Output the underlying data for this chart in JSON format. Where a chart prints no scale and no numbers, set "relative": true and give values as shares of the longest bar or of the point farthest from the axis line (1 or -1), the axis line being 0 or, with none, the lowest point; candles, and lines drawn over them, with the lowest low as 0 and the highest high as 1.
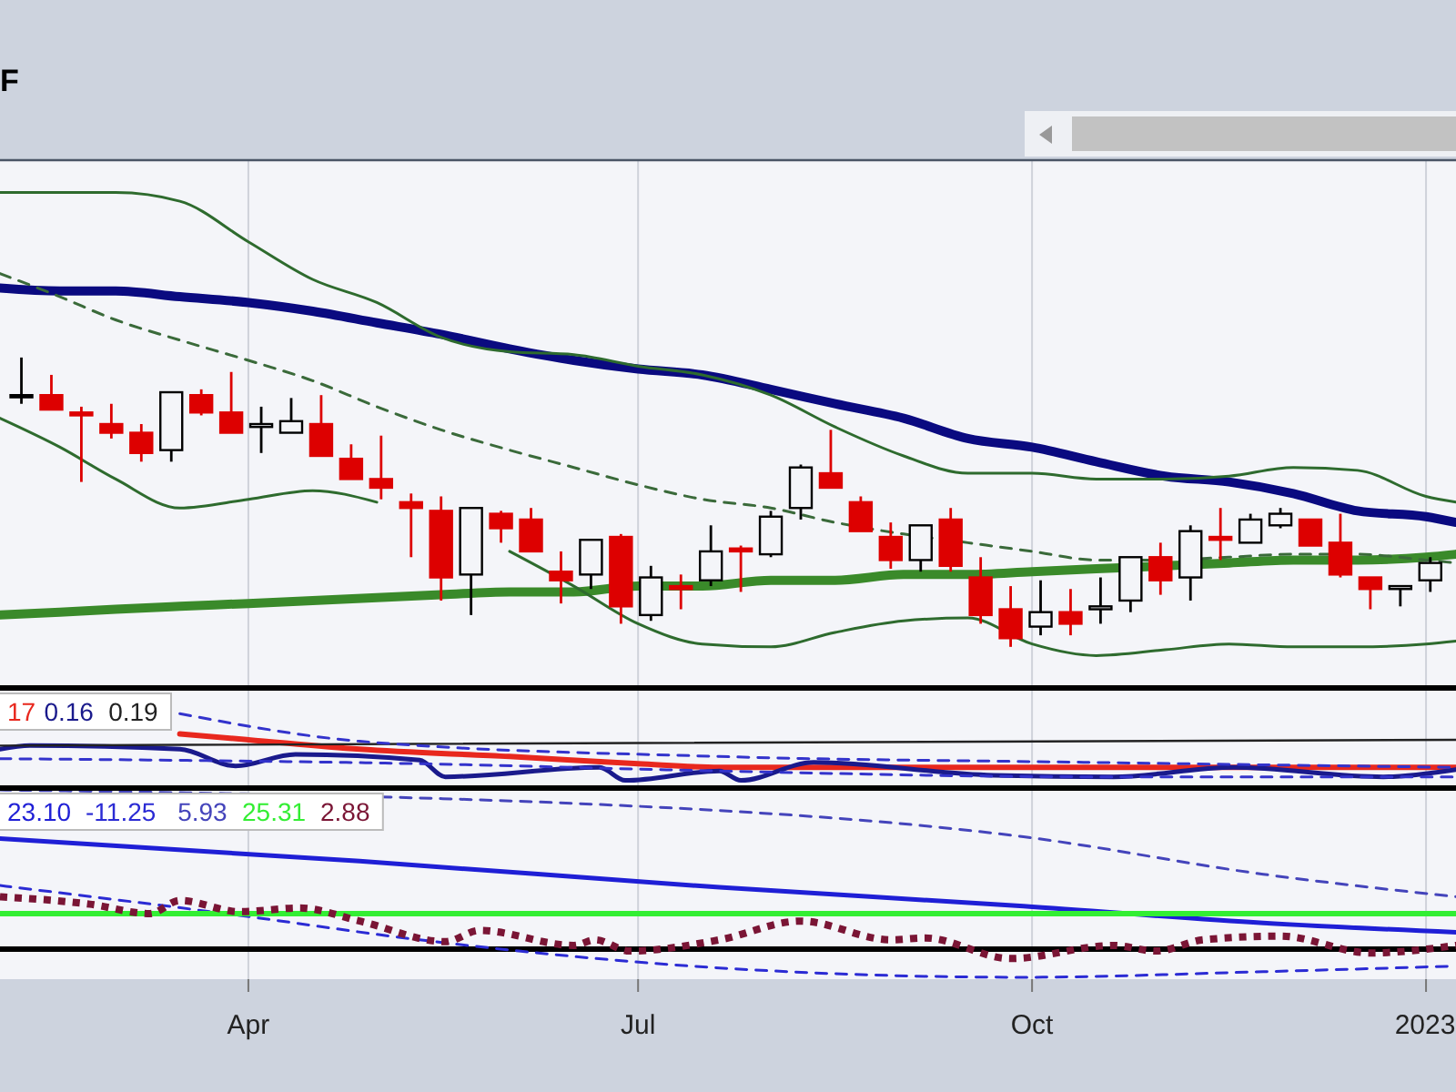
{
  "chart_data": [
    {
      "type": "candlestick",
      "title": "F",
      "relative": true,
      "grid": "x",
      "tick_labels": false,
      "xlim": [
        "2022-02-02",
        "2023-01-08"
      ],
      "xticks": [
        {
          "value": "2022-04-01",
          "label": null
        },
        {
          "value": "2022-07-01",
          "label": null
        },
        {
          "value": "2022-10-01",
          "label": null
        },
        {
          "value": "2023-01-01",
          "label": null
        }
      ],
      "x": [
        "2022-02-07",
        "2022-02-14",
        "2022-02-21",
        "2022-02-28",
        "2022-03-07",
        "2022-03-14",
        "2022-03-21",
        "2022-03-28",
        "2022-04-04",
        "2022-04-11",
        "2022-04-18",
        "2022-04-25",
        "2022-05-02",
        "2022-05-09",
        "2022-05-16",
        "2022-05-23",
        "2022-05-30",
        "2022-06-06",
        "2022-06-13",
        "2022-06-20",
        "2022-06-27",
        "2022-07-04",
        "2022-07-11",
        "2022-07-18",
        "2022-07-25",
        "2022-08-01",
        "2022-08-08",
        "2022-08-15",
        "2022-08-22",
        "2022-08-29",
        "2022-09-05",
        "2022-09-12",
        "2022-09-19",
        "2022-09-26",
        "2022-10-03",
        "2022-10-10",
        "2022-10-17",
        "2022-10-24",
        "2022-10-31",
        "2022-11-07",
        "2022-11-14",
        "2022-11-21",
        "2022-11-28",
        "2022-12-05",
        "2022-12-12",
        "2022-12-19",
        "2022-12-26",
        "2023-01-02"
      ],
      "ohlc": [
        [
          0.87,
          1,
          0.84,
          0.87
        ],
        [
          0.87,
          0.94,
          0.82,
          0.82
        ],
        [
          0.81,
          0.83,
          0.57,
          0.8
        ],
        [
          0.77,
          0.84,
          0.72,
          0.74
        ],
        [
          0.74,
          0.77,
          0.64,
          0.67
        ],
        [
          0.68,
          0.88,
          0.64,
          0.88
        ],
        [
          0.87,
          0.89,
          0.8,
          0.81
        ],
        [
          0.81,
          0.95,
          0.74,
          0.74
        ],
        [
          0.76,
          0.83,
          0.67,
          0.77
        ],
        [
          0.74,
          0.86,
          0.74,
          0.78
        ],
        [
          0.77,
          0.87,
          0.66,
          0.66
        ],
        [
          0.65,
          0.7,
          0.58,
          0.58
        ],
        [
          0.58,
          0.73,
          0.51,
          0.55
        ],
        [
          0.5,
          0.53,
          0.31,
          0.48
        ],
        [
          0.47,
          0.52,
          0.16,
          0.24
        ],
        [
          0.25,
          0.48,
          0.11,
          0.48
        ],
        [
          0.46,
          0.47,
          0.36,
          0.41
        ],
        [
          0.44,
          0.48,
          0.33,
          0.33
        ],
        [
          0.26,
          0.33,
          0.15,
          0.23
        ],
        [
          0.25,
          0.37,
          0.2,
          0.37
        ],
        [
          0.38,
          0.39,
          0.08,
          0.14
        ],
        [
          0.11,
          0.28,
          0.09,
          0.24
        ],
        [
          0.21,
          0.25,
          0.13,
          0.2
        ],
        [
          0.23,
          0.42,
          0.21,
          0.33
        ],
        [
          0.34,
          0.35,
          0.19,
          0.33
        ],
        [
          0.32,
          0.47,
          0.31,
          0.45
        ],
        [
          0.48,
          0.63,
          0.44,
          0.62
        ],
        [
          0.6,
          0.75,
          0.55,
          0.55
        ],
        [
          0.5,
          0.52,
          0.4,
          0.4
        ],
        [
          0.38,
          0.43,
          0.27,
          0.3
        ],
        [
          0.3,
          0.42,
          0.26,
          0.42
        ],
        [
          0.44,
          0.48,
          0.26,
          0.28
        ],
        [
          0.24,
          0.31,
          0.08,
          0.11
        ],
        [
          0.13,
          0.21,
          0,
          0.03
        ],
        [
          0.07,
          0.23,
          0.04,
          0.12
        ],
        [
          0.12,
          0.2,
          0.04,
          0.08
        ],
        [
          0.13,
          0.24,
          0.08,
          0.14
        ],
        [
          0.16,
          0.31,
          0.12,
          0.31
        ],
        [
          0.31,
          0.36,
          0.18,
          0.23
        ],
        [
          0.24,
          0.42,
          0.16,
          0.4
        ],
        [
          0.38,
          0.48,
          0.3,
          0.37
        ],
        [
          0.36,
          0.46,
          0.36,
          0.44
        ],
        [
          0.42,
          0.48,
          0.41,
          0.46
        ],
        [
          0.44,
          0.44,
          0.35,
          0.35
        ],
        [
          0.36,
          0.46,
          0.24,
          0.25
        ],
        [
          0.24,
          0.24,
          0.13,
          0.2
        ],
        [
          0.2,
          0.21,
          0.14,
          0.21
        ],
        [
          0.23,
          0.31,
          0.19,
          0.29
        ]
      ],
      "colors": [
        "#000000",
        "#dd0000",
        "#dd0000",
        "#dd0000",
        "#dd0000",
        "#000000",
        "#dd0000",
        "#dd0000",
        "#000000",
        "#000000",
        "#dd0000",
        "#dd0000",
        "#dd0000",
        "#dd0000",
        "#dd0000",
        "#000000",
        "#dd0000",
        "#dd0000",
        "#dd0000",
        "#000000",
        "#dd0000",
        "#000000",
        "#dd0000",
        "#000000",
        "#dd0000",
        "#000000",
        "#000000",
        "#dd0000",
        "#dd0000",
        "#dd0000",
        "#000000",
        "#dd0000",
        "#dd0000",
        "#dd0000",
        "#000000",
        "#dd0000",
        "#000000",
        "#000000",
        "#dd0000",
        "#000000",
        "#dd0000",
        "#000000",
        "#000000",
        "#dd0000",
        "#dd0000",
        "#dd0000",
        "#000000",
        "#000000"
      ],
      "series": [
        {
          "type": "line",
          "color": "#0a0a80",
          "x": [
            "2022-02-02",
            "2022-02-16",
            "2022-03-01",
            "2022-03-16",
            "2022-04-01",
            "2022-04-16",
            "2022-05-01",
            "2022-05-16",
            "2022-06-01",
            "2022-06-16",
            "2022-07-01",
            "2022-07-16",
            "2022-08-01",
            "2022-08-16",
            "2022-09-01",
            "2022-09-16",
            "2022-10-01",
            "2022-10-16",
            "2022-11-01",
            "2022-11-16",
            "2022-12-01",
            "2022-12-16",
            "2023-01-01",
            "2023-01-08"
          ],
          "values": [
            1.24,
            1.23,
            1.23,
            1.21,
            1.19,
            1.16,
            1.12,
            1.08,
            1.03,
            0.99,
            0.96,
            0.94,
            0.89,
            0.84,
            0.79,
            0.72,
            0.69,
            0.64,
            0.59,
            0.57,
            0.53,
            0.47,
            0.45,
            0.43
          ]
        },
        {
          "type": "line",
          "color": "#3a8a2a",
          "x": [
            "2022-02-02",
            "2022-02-16",
            "2022-03-01",
            "2022-03-16",
            "2022-04-01",
            "2022-04-16",
            "2022-05-01",
            "2022-05-16",
            "2022-06-01",
            "2022-06-16",
            "2022-07-01",
            "2022-07-16",
            "2022-08-01",
            "2022-08-16",
            "2022-09-01",
            "2022-09-16",
            "2022-10-01",
            "2022-10-16",
            "2022-11-01",
            "2022-11-16",
            "2022-12-01",
            "2022-12-16",
            "2023-01-01",
            "2023-01-08"
          ],
          "values": [
            0.11,
            0.12,
            0.13,
            0.14,
            0.15,
            0.16,
            0.17,
            0.18,
            0.19,
            0.19,
            0.21,
            0.21,
            0.23,
            0.23,
            0.25,
            0.25,
            0.26,
            0.27,
            0.28,
            0.29,
            0.3,
            0.3,
            0.31,
            0.32
          ]
        },
        {
          "type": "line",
          "color": "#2e6b2e",
          "x": [
            "2022-02-02",
            "2022-02-16",
            "2022-03-01",
            "2022-03-16",
            "2022-04-01",
            "2022-04-16",
            "2022-05-01",
            "2022-05-16",
            "2022-06-01",
            "2022-06-16",
            "2022-07-01",
            "2022-07-16",
            "2022-08-01",
            "2022-08-16",
            "2022-09-01",
            "2022-09-16",
            "2022-10-01",
            "2022-10-16",
            "2022-11-01",
            "2022-11-16",
            "2022-12-01",
            "2022-12-16",
            "2023-01-01",
            "2023-01-08"
          ],
          "values": [
            1.57,
            1.57,
            1.57,
            1.54,
            1.4,
            1.27,
            1.19,
            1.07,
            1.02,
            1.01,
            0.97,
            0.94,
            0.87,
            0.76,
            0.66,
            0.6,
            0.6,
            0.58,
            0.58,
            0.59,
            0.62,
            0.61,
            0.52,
            0.5
          ]
        },
        {
          "type": "line",
          "color": "#2e6b2e",
          "x": [
            "2022-02-02",
            "2022-02-16",
            "2022-03-01",
            "2022-03-16",
            "2022-04-01",
            "2022-04-16",
            "2022-05-01",
            "2022-05-16",
            "2022-06-01",
            "2022-06-16",
            "2022-07-01",
            "2022-07-16",
            "2022-08-01",
            "2022-08-16",
            "2022-09-01",
            "2022-09-16",
            "2022-10-01",
            "2022-10-16",
            "2022-11-01",
            "2022-11-16",
            "2022-12-01",
            "2022-12-16",
            "2023-01-01",
            "2023-01-08"
          ],
          "values": [
            0.79,
            0.69,
            0.58,
            0.48,
            0.51,
            0.54,
            0.5,
            null,
            0.33,
            0.21,
            0.08,
            0.01,
            0,
            0.05,
            0.09,
            0.1,
            0.01,
            -0.03,
            -0.01,
            0.01,
            0,
            0,
            0.01,
            0.02
          ]
        },
        {
          "type": "line",
          "color": "#3a6a3a",
          "line_style": "dashed",
          "x": [
            "2022-02-02",
            "2022-02-16",
            "2022-03-01",
            "2022-03-16",
            "2022-04-01",
            "2022-04-16",
            "2022-05-01",
            "2022-05-16",
            "2022-06-01",
            "2022-06-16",
            "2022-07-01",
            "2022-07-16",
            "2022-08-01",
            "2022-08-16",
            "2022-09-01",
            "2022-09-16",
            "2022-10-01",
            "2022-10-16",
            "2022-11-01",
            "2022-11-16",
            "2022-12-01",
            "2022-12-16",
            "2023-01-01",
            "2023-01-08"
          ],
          "values": [
            1.29,
            1.21,
            1.13,
            1.06,
            0.99,
            0.92,
            0.83,
            0.75,
            0.68,
            0.62,
            0.56,
            0.51,
            0.48,
            0.43,
            0.39,
            0.36,
            0.33,
            0.3,
            0.3,
            0.31,
            0.32,
            0.32,
            0.3,
            0.29
          ]
        }
      ]
    },
    {
      "type": "line",
      "relative": true,
      "grid": "x",
      "tick_labels": false,
      "legend": "top left",
      "xlim": [
        "2022-02-02",
        "2023-01-08"
      ],
      "xticks": [
        {
          "value": "2022-04-01",
          "label": null
        },
        {
          "value": "2022-07-01",
          "label": null
        },
        {
          "value": "2022-10-01",
          "label": null
        },
        {
          "value": "2023-01-01",
          "label": null
        }
      ],
      "series": [
        {
          "name": "17",
          "color": "#e8281e",
          "x": [
            "2022-03-16",
            "2022-04-01",
            "2022-04-27",
            "2022-06-01",
            "2022-07-01",
            "2022-07-20",
            "2022-09-01",
            "2022-11-01",
            "2023-01-08"
          ],
          "values": [
            0.72,
            0.64,
            0.51,
            0.41,
            0.31,
            0.26,
            0.26,
            0.26,
            0.26
          ]
        },
        {
          "name": "0.16",
          "color": "#1a1a8c",
          "x": [
            "2022-02-02",
            "2022-02-09",
            "2022-03-16",
            "2022-03-29",
            "2022-04-12",
            "2022-05-11",
            "2022-05-17",
            "2022-06-22",
            "2022-06-28",
            "2022-07-20",
            "2022-07-25",
            "2022-08-11",
            "2022-09-22",
            "2022-10-20",
            "2022-11-17",
            "2022-12-22",
            "2023-01-08"
          ],
          "values": [
            0.51,
            0.56,
            0.51,
            0.28,
            0.44,
            0.36,
            0.13,
            0.26,
            0.08,
            0.21,
            0.08,
            0.33,
            0.15,
            0.13,
            0.26,
            0.13,
            0.23
          ]
        },
        {
          "name": "0.19",
          "color": "#222222",
          "x": [
            "2022-02-02",
            "2023-01-08"
          ],
          "values": [
            0.56,
            0.64
          ]
        },
        {
          "color": "#3333cc",
          "line_style": "dashed",
          "x": [
            "2022-03-16",
            "2022-04-27",
            "2022-07-20",
            "2022-10-13",
            "2023-01-08"
          ],
          "values": [
            1,
            0.62,
            0.41,
            0.33,
            0.26
          ]
        },
        {
          "color": "#3333cc",
          "line_style": "dashed",
          "x": [
            "2022-02-02",
            "2022-05-11",
            "2022-07-20",
            "2022-10-13",
            "2023-01-08"
          ],
          "values": [
            0.38,
            0.31,
            0.21,
            0.13,
            0.13
          ]
        }
      ]
    },
    {
      "type": "line",
      "relative": true,
      "grid": "x",
      "tick_labels": "x",
      "legend": "top left",
      "xlim": [
        "2022-02-02",
        "2023-01-08"
      ],
      "xticks": [
        {
          "value": "2022-04-01",
          "label": "Apr"
        },
        {
          "value": "2022-07-01",
          "label": "Jul"
        },
        {
          "value": "2022-10-01",
          "label": "Oct"
        },
        {
          "value": "2023-01-01",
          "label": "2023"
        }
      ],
      "ref_lines": [
        {
          "axis": "y",
          "value": 0.15,
          "color": "#000000"
        }
      ],
      "series": [
        {
          "name": "23.10",
          "color": "#1f1fd6",
          "x": [
            "2022-02-02",
            "2022-04-27",
            "2022-07-20",
            "2022-09-29",
            "2022-11-24",
            "2023-01-08"
          ],
          "values": [
            0.74,
            0.62,
            0.48,
            0.38,
            0.29,
            0.24
          ]
        },
        {
          "name": "-11.25",
          "color": "#2b2bd4",
          "line_style": "dashed",
          "x": [
            "2022-02-02",
            "2022-03-30",
            "2022-05-11",
            "2022-07-20",
            "2022-09-29",
            "2022-11-24",
            "2023-01-08"
          ],
          "values": [
            0.49,
            0.33,
            0.2,
            0.05,
            0,
            0.03,
            0.06
          ]
        },
        {
          "name": "5.93",
          "color": "#4444bb",
          "line_style": "dashed",
          "x": [
            "2022-02-02",
            "2022-07-20",
            "2022-09-29",
            "2022-11-24",
            "2023-01-08"
          ],
          "values": [
            1,
            0.89,
            0.75,
            0.55,
            0.43
          ]
        },
        {
          "name": "25.31",
          "color": "#33ee33",
          "x": [
            "2022-02-02",
            "2023-01-08"
          ],
          "values": [
            0.34,
            0.34
          ]
        },
        {
          "name": "2.88",
          "color": "#7a1535",
          "line_style": "dotted",
          "x": [
            "2022-02-02",
            "2022-02-23",
            "2022-03-09",
            "2022-03-16",
            "2022-03-30",
            "2022-04-13",
            "2022-04-27",
            "2022-05-17",
            "2022-05-25",
            "2022-06-16",
            "2022-06-21",
            "2022-06-29",
            "2022-07-20",
            "2022-08-08",
            "2022-08-29",
            "2022-09-06",
            "2022-09-26",
            "2022-10-20",
            "2022-10-30",
            "2022-11-10",
            "2022-11-28",
            "2022-12-19",
            "2023-01-08"
          ],
          "values": [
            0.43,
            0.39,
            0.34,
            0.41,
            0.35,
            0.37,
            0.3,
            0.19,
            0.25,
            0.17,
            0.2,
            0.14,
            0.2,
            0.3,
            0.2,
            0.21,
            0.1,
            0.17,
            0.14,
            0.2,
            0.22,
            0.13,
            0.17
          ]
        }
      ]
    }
  ]
}
